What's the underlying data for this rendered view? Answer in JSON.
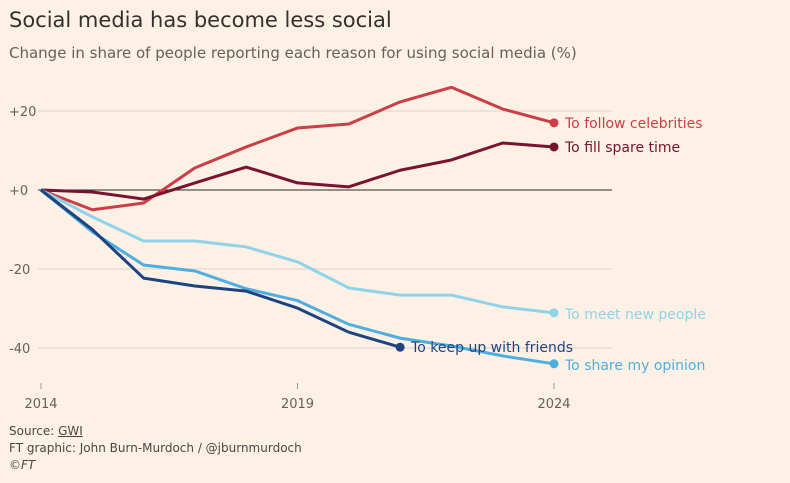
{
  "chart_data": {
    "type": "line",
    "title": "Social media has become less social",
    "subtitle": "Change in share of people reporting each reason for using social media (%)",
    "xlabel": "",
    "ylabel": "",
    "xlim": [
      2014,
      2024
    ],
    "ylim": [
      -48,
      28
    ],
    "x_ticks": [
      2014,
      2019,
      2024
    ],
    "y_ticks": [
      20,
      0,
      -20,
      -40
    ],
    "y_tick_labels": [
      "+20",
      "+0",
      "-20",
      "-40"
    ],
    "grid": true,
    "legend": "direct labels at line ends",
    "series": [
      {
        "name": "To follow celebrities",
        "color": "#cb3e46",
        "x": [
          2014,
          2015,
          2016,
          2017,
          2018,
          2019,
          2020,
          2021,
          2022,
          2023,
          2024
        ],
        "values": [
          0,
          -5,
          -3.3,
          5.6,
          10.9,
          15.7,
          16.7,
          22.3,
          26,
          20.5,
          17
        ]
      },
      {
        "name": "To fill spare time",
        "color": "#79132f",
        "x": [
          2014,
          2015,
          2016,
          2017,
          2018,
          2019,
          2020,
          2021,
          2022,
          2023,
          2024
        ],
        "values": [
          0,
          -0.5,
          -2.3,
          1.8,
          5.8,
          1.8,
          0.8,
          5,
          7.6,
          11.9,
          10.9
        ]
      },
      {
        "name": "To meet new people",
        "color": "#8fd3ea",
        "x": [
          2014,
          2015,
          2016,
          2017,
          2018,
          2019,
          2020,
          2021,
          2022,
          2023,
          2024
        ],
        "values": [
          0,
          -6.8,
          -12.9,
          -12.9,
          -14.4,
          -18.2,
          -24.8,
          -26.6,
          -26.6,
          -29.6,
          -31.1
        ]
      },
      {
        "name": "To share my opinion",
        "color": "#4eaee0",
        "x": [
          2014,
          2015,
          2016,
          2017,
          2018,
          2019,
          2020,
          2021,
          2022,
          2023,
          2024
        ],
        "values": [
          0,
          -10.6,
          -19,
          -20.5,
          -25,
          -28,
          -34,
          -37.5,
          -39.5,
          -42,
          -44
        ]
      },
      {
        "name": "To keep up with friends",
        "color": "#1d4381",
        "x": [
          2014,
          2015,
          2016,
          2017,
          2018,
          2019,
          2020,
          2021
        ],
        "values": [
          0,
          -10,
          -22.3,
          -24.3,
          -25.6,
          -29.9,
          -36,
          -39.8
        ]
      }
    ]
  },
  "footer": {
    "source_label": "Source: ",
    "source_link": "GWI",
    "credit": "FT graphic: John Burn-Murdoch / @jburnmurdoch",
    "copyright": "©FT"
  }
}
